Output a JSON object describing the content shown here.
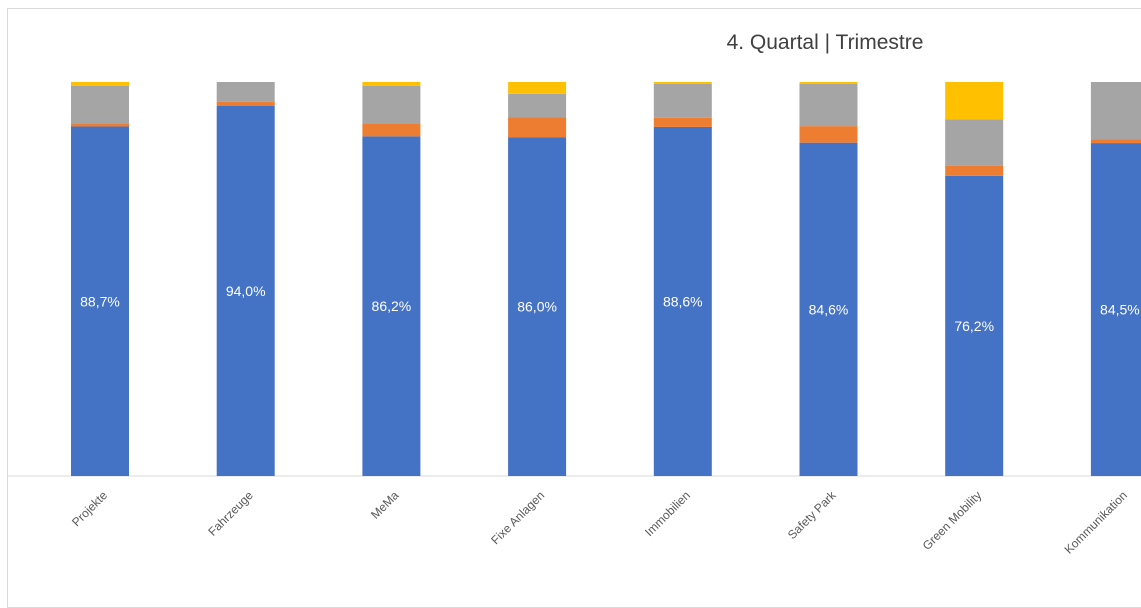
{
  "chart_data": {
    "type": "bar",
    "stacked": true,
    "normalized_percent": true,
    "title": "4. Quartal | Trimestre",
    "categories": [
      "Projekte",
      "Fahrzeuge",
      "MeMa",
      "Fixe Anlagen",
      "Immobilien",
      "Safety Park",
      "Green Mobility",
      "Kommunikation"
    ],
    "series": [
      {
        "color": "#4472c4",
        "values": [
          88.7,
          94.0,
          86.2,
          86.0,
          88.6,
          84.6,
          76.2,
          84.5
        ],
        "labels": [
          "88,7%",
          "94,0%",
          "86,2%",
          "86,0%",
          "88,6%",
          "84,6%",
          "76,2%",
          "84,5%"
        ]
      },
      {
        "color": "#ed7d31",
        "values": [
          0.8,
          1.0,
          3.3,
          5.0,
          2.3,
          4.2,
          2.5,
          1.0
        ]
      },
      {
        "color": "#a5a5a5",
        "values": [
          9.5,
          5.0,
          9.5,
          6.0,
          8.6,
          10.7,
          11.8,
          14.5
        ]
      },
      {
        "color": "#ffc000",
        "values": [
          1.0,
          0.0,
          1.0,
          3.0,
          0.5,
          0.5,
          9.5,
          0.0
        ]
      }
    ],
    "ylim": [
      0,
      100
    ],
    "grid": false,
    "legend": "none"
  }
}
